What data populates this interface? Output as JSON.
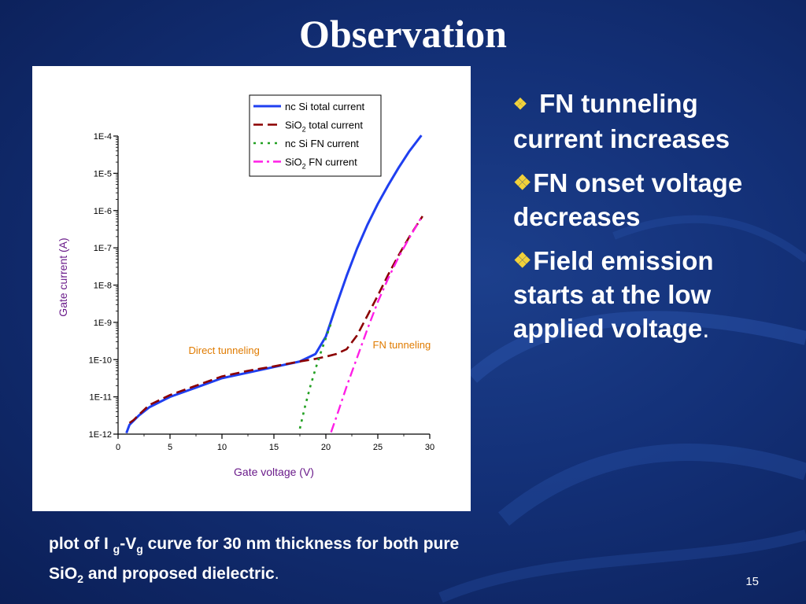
{
  "slide": {
    "title": "Observation",
    "page_number": "15",
    "bullets": [
      "FN tunneling current increases",
      "FN onset voltage decreases",
      "Field emission starts at the  low applied voltage"
    ],
    "bullet_end_punct": ".",
    "caption": {
      "part1": " plot of I ",
      "sub_g1": "g",
      "part2": "-V",
      "sub_g2": "g",
      "part3": " curve for 30 nm thickness for both pure",
      "part4": "SiO",
      "sub_2": "2",
      "part5": " and proposed dielectric",
      "end": "."
    },
    "colors": {
      "background": "#133077",
      "bullet_icon": "#f2d23a",
      "text": "#ffffff"
    }
  },
  "chart_data": {
    "type": "line",
    "xlabel": "Gate voltage (V)",
    "ylabel": "Gate current (A)",
    "xlim": [
      0,
      30
    ],
    "ylim_log10": [
      -12,
      -4
    ],
    "y_scale": "log",
    "x_ticks": [
      "0",
      "5",
      "10",
      "15",
      "20",
      "25",
      "30"
    ],
    "x_tick_values": [
      0,
      5,
      10,
      15,
      20,
      25,
      30
    ],
    "y_ticks": [
      "1E-12",
      "1E-11",
      "1E-10",
      "1E-9",
      "1E-8",
      "1E-7",
      "1E-6",
      "1E-5",
      "1E-4"
    ],
    "y_tick_values": [
      -12,
      -11,
      -10,
      -9,
      -8,
      -7,
      -6,
      -5,
      -4
    ],
    "legend_position": "top-right",
    "annotations": [
      {
        "text": "Direct tunneling",
        "x": 10.2,
        "log10_y": -9.85
      },
      {
        "text": "FN tunneling",
        "x": 27.3,
        "log10_y": -9.7
      }
    ],
    "series": [
      {
        "name": "nc Si total current",
        "name_base": "nc Si total current",
        "name_sub": "",
        "name_rest": "",
        "color": "#1f3ff0",
        "dash": "solid",
        "x": [
          0.8,
          1.1,
          2,
          3,
          5,
          7.5,
          10,
          12.5,
          15,
          17.5,
          19,
          20,
          21,
          22,
          23,
          24,
          25,
          26,
          27,
          28,
          29.2
        ],
        "log10_y": [
          -11.97,
          -11.75,
          -11.5,
          -11.28,
          -11.0,
          -10.75,
          -10.5,
          -10.35,
          -10.2,
          -10.05,
          -9.85,
          -9.38,
          -8.55,
          -7.75,
          -7.02,
          -6.38,
          -5.82,
          -5.32,
          -4.85,
          -4.42,
          -3.98
        ]
      },
      {
        "name": "SiO2 total current",
        "name_base": "SiO",
        "name_sub": "2",
        "name_rest": " total current",
        "color": "#8b0000",
        "dash": "dashed",
        "x": [
          1.1,
          1.5,
          2,
          3,
          5,
          7.5,
          10,
          12.5,
          15,
          17.5,
          19,
          20,
          21,
          22,
          23,
          24,
          25,
          26,
          27,
          28,
          29.3
        ],
        "log10_y": [
          -11.7,
          -11.62,
          -11.48,
          -11.22,
          -10.95,
          -10.7,
          -10.45,
          -10.3,
          -10.18,
          -10.05,
          -9.98,
          -9.92,
          -9.85,
          -9.72,
          -9.35,
          -8.82,
          -8.28,
          -7.72,
          -7.2,
          -6.72,
          -6.15
        ]
      },
      {
        "name": "nc Si FN current",
        "name_base": "nc Si FN current",
        "name_sub": "",
        "name_rest": "",
        "color": "#22a022",
        "dash": "dotted",
        "x": [
          17.5,
          18,
          18.5,
          19,
          19.5,
          20,
          20.5
        ],
        "log10_y": [
          -11.85,
          -11.25,
          -10.72,
          -10.25,
          -9.82,
          -9.42,
          -9.02
        ]
      },
      {
        "name": "SiO2 FN current",
        "name_base": "SiO",
        "name_sub": "2",
        "name_rest": " FN current",
        "color": "#ff1ee6",
        "dash": "dashdot",
        "x": [
          20.5,
          21,
          22,
          23,
          24,
          25,
          26,
          27,
          28,
          29.2
        ],
        "log10_y": [
          -11.95,
          -11.55,
          -10.72,
          -9.95,
          -9.18,
          -8.45,
          -7.82,
          -7.25,
          -6.75,
          -6.18
        ]
      }
    ]
  }
}
